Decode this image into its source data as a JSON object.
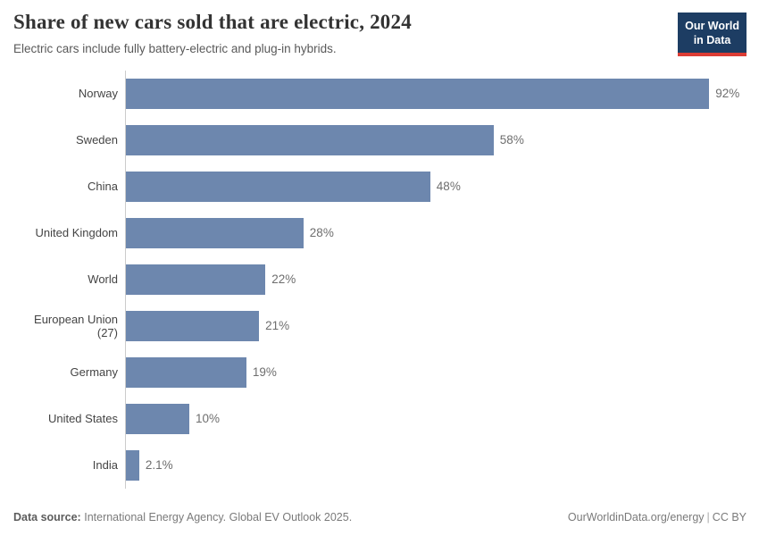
{
  "header": {
    "title": "Share of new cars sold that are electric, 2024",
    "subtitle": "Electric cars include fully battery-electric and plug-in hybrids.",
    "logo": {
      "line1": "Our World",
      "line2": "in Data",
      "bg_color": "#1d3d63",
      "stripe_color": "#dc3c34"
    }
  },
  "chart_data": {
    "type": "bar",
    "orientation": "horizontal",
    "title": "Share of new cars sold that are electric, 2024",
    "subtitle": "Electric cars include fully battery-electric and plug-in hybrids.",
    "xlabel": "",
    "ylabel": "",
    "xlim": [
      0,
      100
    ],
    "grid": false,
    "legend": "none",
    "bar_color": "#6d87ae",
    "categories": [
      "Norway",
      "Sweden",
      "China",
      "United Kingdom",
      "World",
      "European Union (27)",
      "Germany",
      "United States",
      "India"
    ],
    "values": [
      92,
      58,
      48,
      28,
      22,
      21,
      19,
      10,
      2.1
    ],
    "value_labels": [
      "92%",
      "58%",
      "48%",
      "28%",
      "22%",
      "21%",
      "19%",
      "10%",
      "2.1%"
    ]
  },
  "footer": {
    "source_label": "Data source:",
    "source_text": "International Energy Agency. Global EV Outlook 2025.",
    "link_text": "OurWorldinData.org/energy",
    "divider": "|",
    "license_text": "CC BY"
  }
}
